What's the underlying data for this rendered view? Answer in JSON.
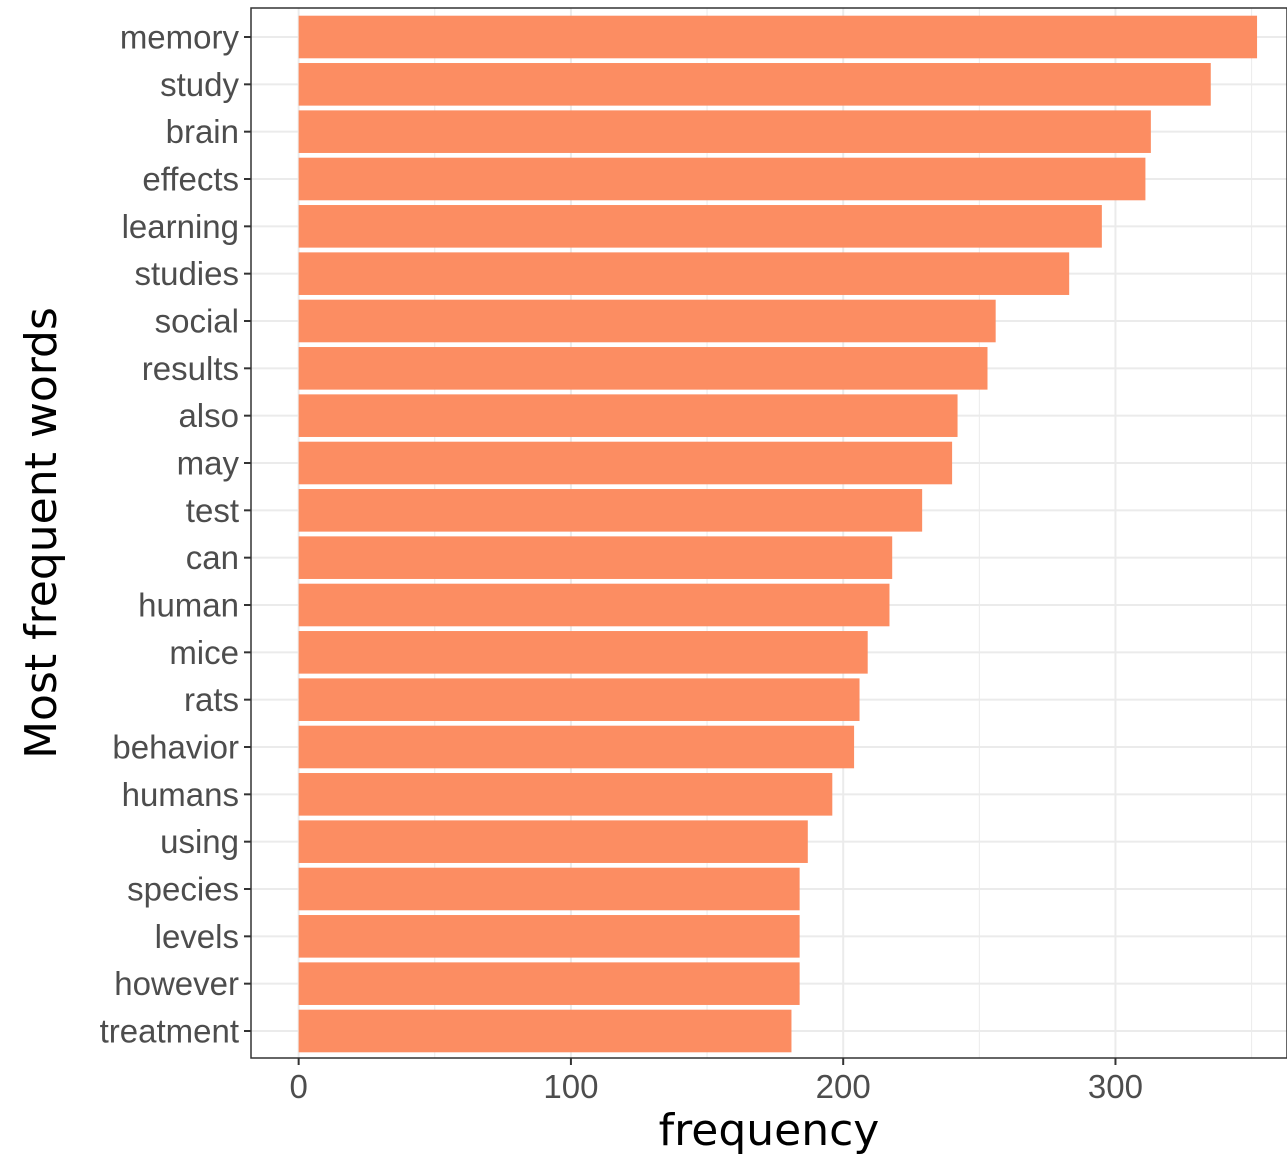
{
  "chart_data": {
    "type": "bar",
    "orientation": "horizontal",
    "title": "",
    "xlabel": "frequency",
    "ylabel": "Most frequent words",
    "categories": [
      "memory",
      "study",
      "brain",
      "effects",
      "learning",
      "studies",
      "social",
      "results",
      "also",
      "may",
      "test",
      "can",
      "human",
      "mice",
      "rats",
      "behavior",
      "humans",
      "using",
      "species",
      "levels",
      "however",
      "treatment"
    ],
    "values": [
      352,
      335,
      313,
      311,
      295,
      283,
      256,
      253,
      242,
      240,
      229,
      218,
      217,
      209,
      206,
      204,
      196,
      187,
      184,
      184,
      184,
      181
    ],
    "xlim": [
      -17.5,
      363
    ],
    "xticks": [
      0,
      100,
      200,
      300
    ],
    "xtick_labels": [
      "0",
      "100",
      "200",
      "300"
    ],
    "grid": true,
    "legend": "none",
    "bar_color": "#FC8D62",
    "panel_background": "#FFFFFF",
    "grid_color": "#EBEBEB"
  }
}
